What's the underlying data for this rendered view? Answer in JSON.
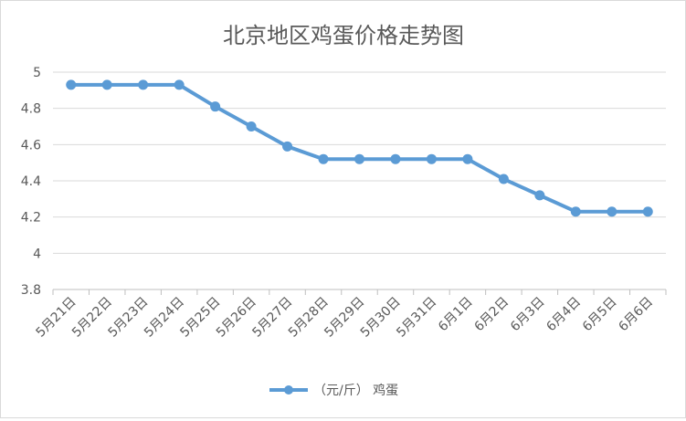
{
  "chart_data": {
    "type": "line",
    "title": "北京地区鸡蛋价格走势图",
    "xlabel": "",
    "ylabel": "",
    "categories": [
      "5月21日",
      "5月22日",
      "5月23日",
      "5月24日",
      "5月25日",
      "5月26日",
      "5月27日",
      "5月28日",
      "5月29日",
      "5月30日",
      "5月31日",
      "6月1日",
      "6月2日",
      "6月3日",
      "6月4日",
      "6月5日",
      "6月6日"
    ],
    "series": [
      {
        "name": "（元/斤） 鸡蛋",
        "values": [
          4.93,
          4.93,
          4.93,
          4.93,
          4.81,
          4.7,
          4.59,
          4.52,
          4.52,
          4.52,
          4.52,
          4.52,
          4.41,
          4.32,
          4.23,
          4.23,
          4.23
        ]
      }
    ],
    "ylim": [
      3.8,
      5
    ],
    "yticks": [
      3.8,
      4,
      4.2,
      4.4,
      4.6,
      4.8,
      5
    ],
    "ytick_labels": [
      "3.8",
      "4",
      "4.2",
      "4.4",
      "4.6",
      "4.8",
      "5"
    ],
    "grid": "horizontal",
    "legend_position": "bottom",
    "line_color": "#5b9bd5"
  }
}
